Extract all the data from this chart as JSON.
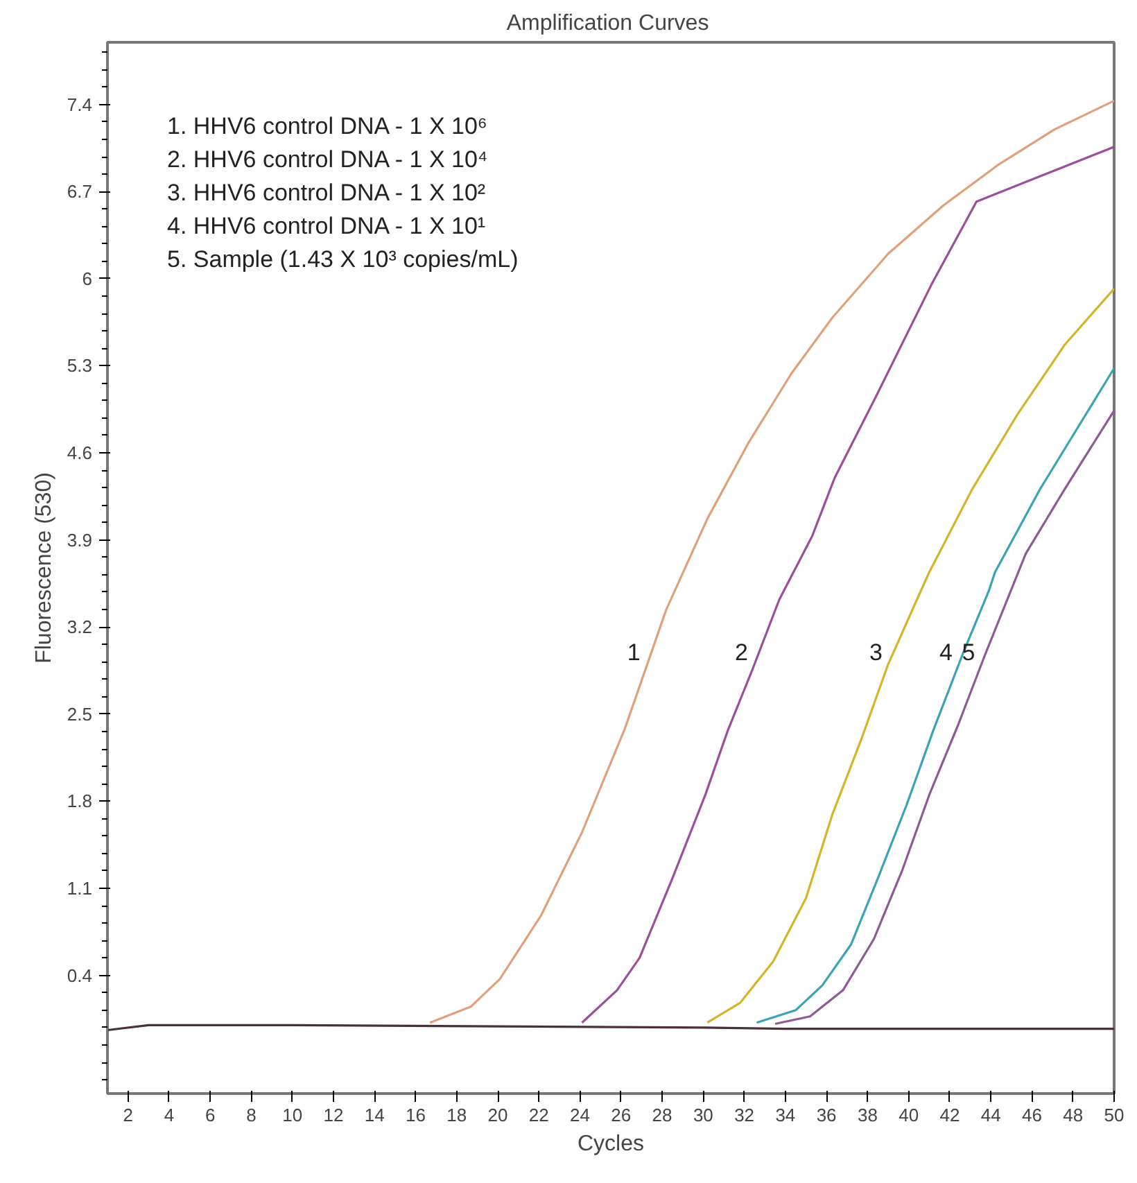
{
  "chart_data": {
    "type": "line",
    "title": "Amplification  Curves",
    "xlabel": "Cycles",
    "ylabel": "Fluorescence (530)",
    "xlim": [
      1,
      50
    ],
    "xticks": [
      2,
      4,
      6,
      8,
      10,
      12,
      14,
      16,
      18,
      20,
      22,
      24,
      26,
      28,
      30,
      32,
      34,
      36,
      38,
      40,
      42,
      44,
      46,
      48,
      50
    ],
    "ylim": [
      -0.55,
      7.9
    ],
    "yticks": [
      0.4,
      1.1,
      1.8,
      2.5,
      3.2,
      3.9,
      4.6,
      5.3,
      6,
      6.7,
      7.4
    ],
    "grid": false,
    "legend": false,
    "marker": "none",
    "line_style": "solid",
    "series": [
      {
        "color": "#4a3038",
        "x": [
          1,
          3,
          10,
          20,
          30,
          34,
          40,
          50
        ],
        "values": [
          -0.04,
          0.0,
          0.0,
          -0.01,
          -0.02,
          -0.03,
          -0.03,
          -0.03
        ]
      },
      {
        "name": "1",
        "color": "#e0a07c",
        "x": [
          16.7,
          18.7,
          20.1,
          22.1,
          24.1,
          26.2,
          28.2,
          30.2,
          32.2,
          34.3,
          36.3,
          39,
          41.7,
          44.4,
          47.1,
          50
        ],
        "values": [
          0.02,
          0.15,
          0.37,
          0.88,
          1.55,
          2.39,
          3.34,
          4.07,
          4.68,
          5.24,
          5.69,
          6.2,
          6.59,
          6.92,
          7.2,
          7.43
        ]
      },
      {
        "name": "2",
        "color": "#9b4f9b",
        "x": [
          24.1,
          25.8,
          26.9,
          28.5,
          30.1,
          31.2,
          32.4,
          33.7,
          35.3,
          36.4,
          38.4,
          41.1,
          43.3,
          50
        ],
        "values": [
          0.02,
          0.28,
          0.54,
          1.18,
          1.85,
          2.37,
          2.86,
          3.42,
          3.93,
          4.4,
          5.05,
          5.95,
          6.62,
          7.06
        ]
      },
      {
        "name": "3",
        "color": "#d4b42a",
        "x": [
          30.2,
          31.8,
          33.4,
          35.0,
          36.3,
          37.7,
          39.0,
          40.4,
          41.0,
          43.1,
          45.3,
          47.6,
          50
        ],
        "values": [
          0.02,
          0.18,
          0.51,
          1.02,
          1.7,
          2.3,
          2.9,
          3.42,
          3.64,
          4.31,
          4.91,
          5.47,
          5.92
        ]
      },
      {
        "name": "4",
        "color": "#3aa3b5",
        "x": [
          32.6,
          34.5,
          35.8,
          37.2,
          38.5,
          39.9,
          41.2,
          42.6,
          43.9,
          44.2,
          46.4,
          50
        ],
        "values": [
          0.02,
          0.12,
          0.32,
          0.65,
          1.18,
          1.77,
          2.37,
          2.97,
          3.49,
          3.64,
          4.31,
          5.28
        ]
      },
      {
        "name": "5",
        "color": "#8e5a95",
        "x": [
          33.5,
          35.2,
          36.8,
          38.3,
          39.7,
          41.0,
          42.4,
          43.7,
          45.7,
          47.6,
          50
        ],
        "values": [
          0.01,
          0.07,
          0.28,
          0.69,
          1.25,
          1.85,
          2.41,
          2.97,
          3.79,
          4.31,
          4.94
        ]
      }
    ],
    "annotations": [
      "1. HHV6 control DNA - 1 X 10⁶",
      "2. HHV6 control DNA - 1 X 10⁴",
      "3. HHV6 control DNA - 1 X 10²",
      "4. HHV6 control DNA - 1 X 10¹",
      "5. Sample (1.43 X 10³ copies/mL)"
    ]
  }
}
